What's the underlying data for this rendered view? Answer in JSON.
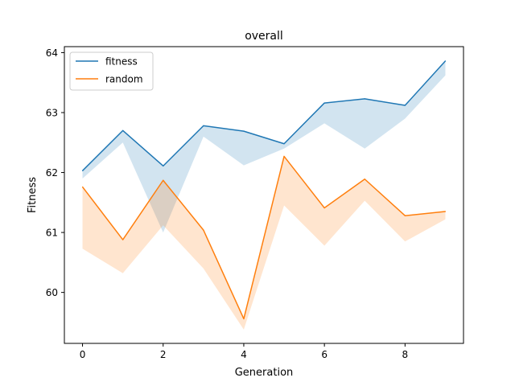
{
  "chart_data": {
    "type": "line",
    "title": "overall",
    "xlabel": "Generation",
    "ylabel": "Fitness",
    "x": [
      0,
      1,
      2,
      3,
      4,
      5,
      6,
      7,
      8,
      9
    ],
    "xlim": [
      -0.45,
      9.45
    ],
    "ylim": [
      59.15,
      64.1
    ],
    "xticks": [
      0,
      2,
      4,
      6,
      8
    ],
    "yticks": [
      60,
      61,
      62,
      63,
      64
    ],
    "grid": false,
    "legend_position": "top-left",
    "series": [
      {
        "name": "fitness",
        "color": "#1f77b4",
        "values": [
          62.03,
          62.7,
          62.11,
          62.78,
          62.69,
          62.48,
          63.16,
          63.23,
          63.12,
          63.86
        ],
        "band_lower": [
          61.9,
          62.5,
          61.0,
          62.6,
          62.12,
          62.4,
          62.82,
          62.4,
          62.9,
          63.62
        ],
        "band_upper": [
          62.03,
          62.7,
          62.11,
          62.78,
          62.69,
          62.48,
          63.16,
          63.23,
          63.12,
          63.86
        ]
      },
      {
        "name": "random",
        "color": "#ff7f0e",
        "values": [
          61.76,
          60.88,
          61.87,
          61.04,
          59.56,
          62.27,
          61.41,
          61.89,
          61.28,
          61.35
        ],
        "band_lower": [
          60.73,
          60.32,
          61.12,
          60.4,
          59.38,
          61.45,
          60.78,
          61.53,
          60.85,
          61.22
        ],
        "band_upper": [
          61.76,
          60.88,
          61.87,
          61.04,
          59.56,
          62.27,
          61.41,
          61.89,
          61.28,
          61.35
        ]
      }
    ]
  }
}
